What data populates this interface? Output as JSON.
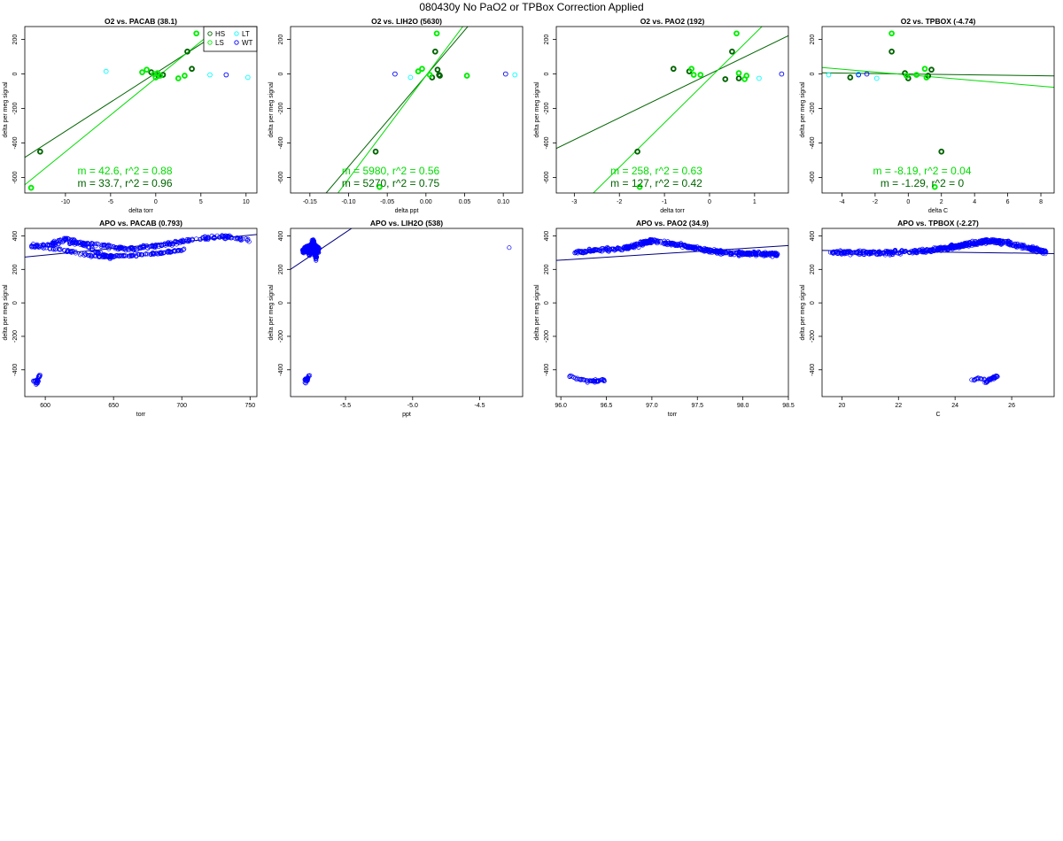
{
  "page_title": "080430y   No PaO2 or TPBox Correction Applied",
  "colors": {
    "HS": "#006400",
    "LS": "#00ee00",
    "LT": "#00ffff",
    "WT": "#0000ff",
    "apo_points": "#0000ff",
    "apo_fit": "#000080",
    "fit_dark": "#006400",
    "fit_light": "#00dd00"
  },
  "chart_data": [
    {
      "type": "scatter",
      "id": "o2-pacab",
      "title": "O2 vs. PACAB (38.1)",
      "xlabel": "delta torr",
      "ylabel": "delta per meg signal",
      "xlim": [
        -14.5,
        11.2
      ],
      "ylim": [
        -690,
        275
      ],
      "xticks": [
        -10,
        -5,
        0,
        5,
        10
      ],
      "xtick_labels": [
        "-10",
        "-5",
        "0",
        "5",
        "10"
      ],
      "yticks": [
        -600,
        -400,
        -200,
        0,
        200
      ],
      "ytick_labels": [
        "-600",
        "-400",
        "-200",
        "0",
        "200"
      ],
      "legend": {
        "position": "top-right",
        "entries": [
          {
            "label": "HS",
            "color": "#006400"
          },
          {
            "label": "LT",
            "color": "#00ffff"
          },
          {
            "label": "LS",
            "color": "#00ee00"
          },
          {
            "label": "WT",
            "color": "#0000ff"
          }
        ]
      },
      "series": [
        {
          "name": "HS",
          "color": "#006400",
          "thick": true,
          "x": [
            -12.8,
            -0.5,
            0.3,
            0.8,
            3.5,
            4.0
          ],
          "y": [
            -450,
            10,
            -10,
            -5,
            130,
            30
          ]
        },
        {
          "name": "LS",
          "color": "#00ee00",
          "thick": true,
          "x": [
            -13.8,
            -1.5,
            -1.0,
            -0.2,
            0.0,
            0.2,
            0.5,
            2.5,
            3.2,
            4.5
          ],
          "y": [
            -660,
            10,
            25,
            0,
            -20,
            5,
            -10,
            -25,
            -10,
            235
          ]
        },
        {
          "name": "LT",
          "color": "#00ffff",
          "x": [
            -5.5,
            6.0,
            10.2
          ],
          "y": [
            15,
            -5,
            -20
          ]
        },
        {
          "name": "WT",
          "color": "#0000ff",
          "x": [
            7.8
          ],
          "y": [
            -5
          ]
        }
      ],
      "fits": [
        {
          "slope": 33.7,
          "intercept": 5,
          "color": "#006400"
        },
        {
          "slope": 42.6,
          "intercept": -25,
          "color": "#00dd00"
        }
      ],
      "annotations": [
        {
          "text": "m = 42.6, r^2 = 0.88",
          "color": "#00dd00"
        },
        {
          "text": "m = 33.7, r^2 = 0.96",
          "color": "#006400"
        }
      ]
    },
    {
      "type": "scatter",
      "id": "o2-lih2o",
      "title": "O2 vs. LIH2O (5630)",
      "xlabel": "delta ppt",
      "ylabel": "delta per meg signal",
      "xlim": [
        -0.175,
        0.125
      ],
      "ylim": [
        -690,
        275
      ],
      "xticks": [
        -0.15,
        -0.1,
        -0.05,
        0,
        0.05,
        0.1
      ],
      "xtick_labels": [
        "-0.15",
        "-0.10",
        "-0.05",
        "0.00",
        "0.05",
        "0.10"
      ],
      "yticks": [
        -600,
        -400,
        -200,
        0,
        200
      ],
      "ytick_labels": [
        "-600",
        "-400",
        "-200",
        "0",
        "200"
      ],
      "series": [
        {
          "name": "HS",
          "color": "#006400",
          "thick": true,
          "x": [
            -0.065,
            0.008,
            0.012,
            0.015,
            0.017,
            0.018
          ],
          "y": [
            -450,
            -20,
            130,
            25,
            -5,
            -10
          ]
        },
        {
          "name": "LS",
          "color": "#00ee00",
          "thick": true,
          "x": [
            -0.06,
            -0.01,
            -0.005,
            0.005,
            0.014,
            0.053
          ],
          "y": [
            -655,
            15,
            30,
            -5,
            235,
            -10
          ]
        },
        {
          "name": "LT",
          "color": "#00ffff",
          "x": [
            -0.02,
            0.115
          ],
          "y": [
            -20,
            -5
          ]
        },
        {
          "name": "WT",
          "color": "#0000ff",
          "x": [
            -0.04,
            0.103
          ],
          "y": [
            0,
            0
          ]
        }
      ],
      "fits": [
        {
          "slope": 5270,
          "intercept": -10,
          "color": "#006400"
        },
        {
          "slope": 5980,
          "intercept": -10,
          "color": "#00dd00"
        }
      ],
      "annotations": [
        {
          "text": "m = 5980, r^2 = 0.56",
          "color": "#00dd00"
        },
        {
          "text": "m = 5270, r^2 = 0.75",
          "color": "#006400"
        }
      ]
    },
    {
      "type": "scatter",
      "id": "o2-pao2",
      "title": "O2 vs. PAO2 (192)",
      "xlabel": "delta torr",
      "ylabel": "delta per meg signal",
      "xlim": [
        -3.4,
        1.75
      ],
      "ylim": [
        -690,
        275
      ],
      "xticks": [
        -3,
        -2,
        -1,
        0,
        1
      ],
      "xtick_labels": [
        "-3",
        "-2",
        "-1",
        "0",
        "1"
      ],
      "yticks": [
        -600,
        -400,
        -200,
        0,
        200
      ],
      "ytick_labels": [
        "-600",
        "-400",
        "-200",
        "0",
        "200"
      ],
      "series": [
        {
          "name": "HS",
          "color": "#006400",
          "thick": true,
          "x": [
            -1.6,
            -0.8,
            -0.45,
            0.35,
            0.5,
            0.65
          ],
          "y": [
            -450,
            30,
            15,
            -30,
            130,
            -25
          ]
        },
        {
          "name": "LS",
          "color": "#00ee00",
          "thick": true,
          "x": [
            -1.55,
            -0.4,
            -0.35,
            -0.2,
            0.6,
            0.65,
            0.78,
            0.82
          ],
          "y": [
            -655,
            30,
            -5,
            -5,
            235,
            5,
            -30,
            -10
          ]
        },
        {
          "name": "LT",
          "color": "#00ffff",
          "x": [
            1.1
          ],
          "y": [
            -25
          ]
        },
        {
          "name": "WT",
          "color": "#0000ff",
          "x": [
            1.6
          ],
          "y": [
            0
          ]
        }
      ],
      "fits": [
        {
          "slope": 127,
          "intercept": 0,
          "color": "#006400"
        },
        {
          "slope": 258,
          "intercept": -25,
          "color": "#00dd00"
        }
      ],
      "annotations": [
        {
          "text": "m = 258, r^2 = 0.63",
          "color": "#00dd00"
        },
        {
          "text": "m = 127, r^2 = 0.42",
          "color": "#006400"
        }
      ]
    },
    {
      "type": "scatter",
      "id": "o2-tpbox",
      "title": "O2 vs. TPBOX (-4.74)",
      "xlabel": "delta C",
      "ylabel": "delta per meg signal",
      "xlim": [
        -5.2,
        8.8
      ],
      "ylim": [
        -690,
        275
      ],
      "xticks": [
        -4,
        -2,
        0,
        2,
        4,
        6,
        8
      ],
      "xtick_labels": [
        "-4",
        "-2",
        "0",
        "2",
        "4",
        "6",
        "8"
      ],
      "yticks": [
        -600,
        -400,
        -200,
        0,
        200
      ],
      "ytick_labels": [
        "-600",
        "-400",
        "-200",
        "0",
        "200"
      ],
      "series": [
        {
          "name": "HS",
          "color": "#006400",
          "thick": true,
          "x": [
            -3.5,
            -1.0,
            -0.2,
            0.0,
            1.2,
            1.4,
            2.0
          ],
          "y": [
            -20,
            130,
            5,
            -25,
            -10,
            25,
            -450
          ]
        },
        {
          "name": "LS",
          "color": "#00ee00",
          "thick": true,
          "x": [
            -1.0,
            -0.1,
            0.5,
            1.0,
            1.1,
            1.6
          ],
          "y": [
            235,
            -10,
            -5,
            30,
            -20,
            -655
          ]
        },
        {
          "name": "LT",
          "color": "#00ffff",
          "x": [
            -4.8,
            -3.0,
            -1.9
          ],
          "y": [
            -5,
            0,
            -25
          ]
        },
        {
          "name": "WT",
          "color": "#0000ff",
          "x": [
            -2.5,
            -3.0
          ],
          "y": [
            0,
            -5
          ]
        }
      ],
      "fits": [
        {
          "slope": -1.29,
          "intercept": 0,
          "color": "#006400"
        },
        {
          "slope": -8.19,
          "intercept": -5,
          "color": "#00dd00"
        }
      ],
      "annotations": [
        {
          "text": "m = -8.19, r^2 = 0.04",
          "color": "#00dd00"
        },
        {
          "text": "m = -1.29, r^2 = 0",
          "color": "#006400"
        }
      ]
    },
    {
      "type": "scatter",
      "id": "apo-pacab",
      "title": "APO vs. PACAB (0.793)",
      "xlabel": "torr",
      "ylabel": "delta per meg signal",
      "xlim": [
        585,
        755
      ],
      "ylim": [
        -560,
        445
      ],
      "xticks": [
        600,
        650,
        700,
        750
      ],
      "xtick_labels": [
        "600",
        "650",
        "700",
        "750"
      ],
      "yticks": [
        -400,
        -200,
        0,
        200,
        400
      ],
      "ytick_labels": [
        "-400",
        "-200",
        "0",
        "200",
        "400"
      ],
      "clusters": [
        {
          "path": [
            [
              590,
              340
            ],
            [
              600,
              345
            ],
            [
              610,
              350
            ],
            [
              620,
              360
            ],
            [
              630,
              355
            ],
            [
              640,
              345
            ],
            [
              650,
              330
            ],
            [
              660,
              325
            ],
            [
              670,
              330
            ],
            [
              680,
              340
            ],
            [
              690,
              350
            ],
            [
              700,
              365
            ],
            [
              710,
              380
            ],
            [
              720,
              390
            ],
            [
              730,
              395
            ],
            [
              740,
              385
            ],
            [
              750,
              370
            ]
          ],
          "n": 260,
          "spread": 14
        },
        {
          "path": [
            [
              598,
              330
            ],
            [
              610,
              320
            ],
            [
              622,
              300
            ],
            [
              632,
              285
            ],
            [
              642,
              278
            ],
            [
              652,
              280
            ],
            [
              662,
              282
            ],
            [
              672,
              288
            ],
            [
              682,
              295
            ],
            [
              692,
              305
            ],
            [
              702,
              320
            ]
          ],
          "n": 140,
          "spread": 10
        },
        {
          "path": [
            [
              605,
              355
            ],
            [
              612,
              375
            ],
            [
              616,
              385
            ],
            [
              621,
              370
            ],
            [
              628,
              345
            ],
            [
              636,
              310
            ],
            [
              645,
              280
            ],
            [
              650,
              270
            ]
          ],
          "n": 80,
          "spread": 14
        },
        {
          "path": [
            [
              590,
              -470
            ],
            [
              595,
              -460
            ],
            [
              593,
              -490
            ],
            [
              596,
              -430
            ]
          ],
          "n": 26,
          "spread": 7
        }
      ],
      "fit": {
        "slope": 0.793,
        "intercept": -190
      }
    },
    {
      "type": "scatter",
      "id": "apo-lih2o",
      "title": "APO vs. LIH2O (538)",
      "xlabel": "ppt",
      "ylabel": "delta per meg signal",
      "xlim": [
        -5.91,
        -4.18
      ],
      "ylim": [
        -560,
        445
      ],
      "xticks": [
        -5.5,
        -5.0,
        -4.5
      ],
      "xtick_labels": [
        "-5.5",
        "-5.0",
        "-4.5"
      ],
      "yticks": [
        -400,
        -200,
        0,
        200,
        400
      ],
      "ytick_labels": [
        "-400",
        "-200",
        "0",
        "200",
        "400"
      ],
      "clusters": [
        {
          "path": [
            [
              -5.82,
              310
            ],
            [
              -5.78,
              330
            ],
            [
              -5.74,
              340
            ],
            [
              -5.7,
              320
            ],
            [
              -5.78,
              290
            ],
            [
              -5.74,
              370
            ],
            [
              -5.72,
              270
            ]
          ],
          "n": 420,
          "spread": 22
        },
        {
          "path": [
            [
              -5.81,
              -460
            ],
            [
              -5.78,
              -450
            ],
            [
              -5.8,
              -480
            ],
            [
              -5.77,
              -430
            ]
          ],
          "n": 30,
          "spread": 8
        },
        {
          "path": [
            [
              -4.28,
              330
            ]
          ],
          "n": 1,
          "spread": 0
        }
      ],
      "fit": {
        "slope": 538,
        "intercept": 3380
      }
    },
    {
      "type": "scatter",
      "id": "apo-pao2",
      "title": "APO vs. PAO2 (34.9)",
      "xlabel": "torr",
      "ylabel": "delta per meg signal",
      "xlim": [
        95.95,
        98.5
      ],
      "ylim": [
        -560,
        445
      ],
      "xticks": [
        96.0,
        96.5,
        97.0,
        97.5,
        98.0,
        98.5
      ],
      "xtick_labels": [
        "96.0",
        "96.5",
        "97.0",
        "97.5",
        "98.0",
        "98.5"
      ],
      "yticks": [
        -400,
        -200,
        0,
        200,
        400
      ],
      "ytick_labels": [
        "-400",
        "-200",
        "0",
        "200",
        "400"
      ],
      "clusters": [
        {
          "path": [
            [
              96.15,
              300
            ],
            [
              96.4,
              315
            ],
            [
              96.7,
              325
            ],
            [
              96.9,
              355
            ],
            [
              97.0,
              370
            ],
            [
              97.2,
              355
            ],
            [
              97.4,
              335
            ],
            [
              97.6,
              315
            ],
            [
              97.8,
              300
            ],
            [
              98.0,
              295
            ],
            [
              98.2,
              295
            ],
            [
              98.4,
              290
            ]
          ],
          "n": 520,
          "spread": 17
        },
        {
          "path": [
            [
              96.1,
              -440
            ],
            [
              96.25,
              -460
            ],
            [
              96.35,
              -470
            ],
            [
              96.45,
              -460
            ],
            [
              96.5,
              -470
            ]
          ],
          "n": 45,
          "spread": 12
        }
      ],
      "fit": {
        "slope": 34.9,
        "intercept": -3095
      }
    },
    {
      "type": "scatter",
      "id": "apo-tpbox",
      "title": "APO vs. TPBOX (-2.27)",
      "xlabel": "C",
      "ylabel": "delta per meg signal",
      "xlim": [
        19.3,
        27.5
      ],
      "ylim": [
        -560,
        445
      ],
      "xticks": [
        20,
        22,
        24,
        26
      ],
      "xtick_labels": [
        "20",
        "22",
        "24",
        "26"
      ],
      "yticks": [
        -400,
        -200,
        0,
        200,
        400
      ],
      "ytick_labels": [
        "-400",
        "-200",
        "0",
        "200",
        "400"
      ],
      "clusters": [
        {
          "path": [
            [
              19.6,
              300
            ],
            [
              20.5,
              300
            ],
            [
              21.5,
              298
            ],
            [
              22.5,
              305
            ],
            [
              23.2,
              315
            ],
            [
              23.8,
              330
            ],
            [
              24.3,
              345
            ],
            [
              24.8,
              360
            ],
            [
              25.2,
              370
            ],
            [
              25.8,
              360
            ],
            [
              26.3,
              340
            ],
            [
              26.8,
              320
            ],
            [
              27.2,
              305
            ]
          ],
          "n": 560,
          "spread": 18
        },
        {
          "path": [
            [
              24.6,
              -460
            ],
            [
              24.9,
              -450
            ],
            [
              25.1,
              -470
            ],
            [
              25.3,
              -450
            ],
            [
              25.5,
              -440
            ]
          ],
          "n": 45,
          "spread": 11
        }
      ],
      "fit": {
        "slope": -2.27,
        "intercept": 357
      }
    }
  ]
}
